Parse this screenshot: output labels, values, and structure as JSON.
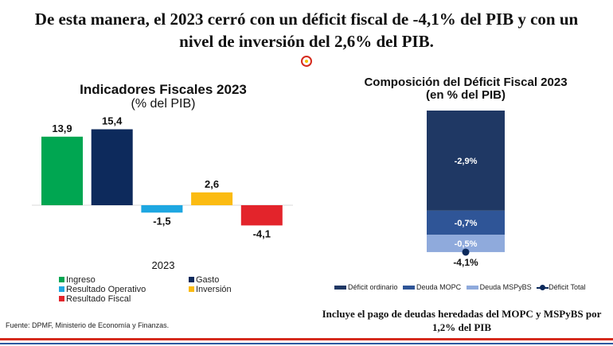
{
  "headline": [
    "De esta manera, el 2023 cerró con un déficit fiscal de -4,1% del PIB y con un",
    "nivel de inversión del 2,6% del PIB."
  ],
  "chart_data": [
    {
      "type": "bar",
      "title": "Indicadores Fiscales 2023",
      "subtitle": "(% del PIB)",
      "xlabel": "2023",
      "categories": [
        "2023"
      ],
      "series": [
        {
          "name": "Ingreso",
          "values": [
            13.9
          ],
          "label": "13,9",
          "color": "#00a651"
        },
        {
          "name": "Gasto",
          "values": [
            15.4
          ],
          "label": "15,4",
          "color": "#0d2a5c"
        },
        {
          "name": "Resultado Operativo",
          "values": [
            -1.5
          ],
          "label": "-1,5",
          "color": "#1ea7e1"
        },
        {
          "name": "Inversión",
          "values": [
            2.6
          ],
          "label": "2,6",
          "color": "#fbbb12"
        },
        {
          "name": "Resultado Fiscal",
          "values": [
            -4.1
          ],
          "label": "-4,1",
          "color": "#e3242b"
        }
      ],
      "legend_position": "bottom",
      "grid": false
    },
    {
      "type": "bar",
      "stacked": true,
      "title": "Composición del Déficit Fiscal 2023",
      "subtitle": "(en % del PIB)",
      "series": [
        {
          "name": "Déficit ordinario",
          "values": [
            -2.9
          ],
          "label": "-2,9%",
          "color": "#1f3864"
        },
        {
          "name": "Deuda MOPC",
          "values": [
            -0.7
          ],
          "label": "-0,7%",
          "color": "#2f5597"
        },
        {
          "name": "Deuda MSPyBS",
          "values": [
            -0.5
          ],
          "label": "-0,5%",
          "color": "#8faadc"
        }
      ],
      "total": {
        "name": "Déficit Total",
        "value": -4.1,
        "label": "-4,1%",
        "color": "#0d2a5c"
      },
      "legend_position": "bottom",
      "grid": false
    }
  ],
  "note": [
    "Incluye el pago de deudas heredadas del MOPC y MSPyBS por",
    "1,2% del PIB"
  ],
  "source": "Fuente: DPMF, Ministerio de Economía y Finanzas."
}
